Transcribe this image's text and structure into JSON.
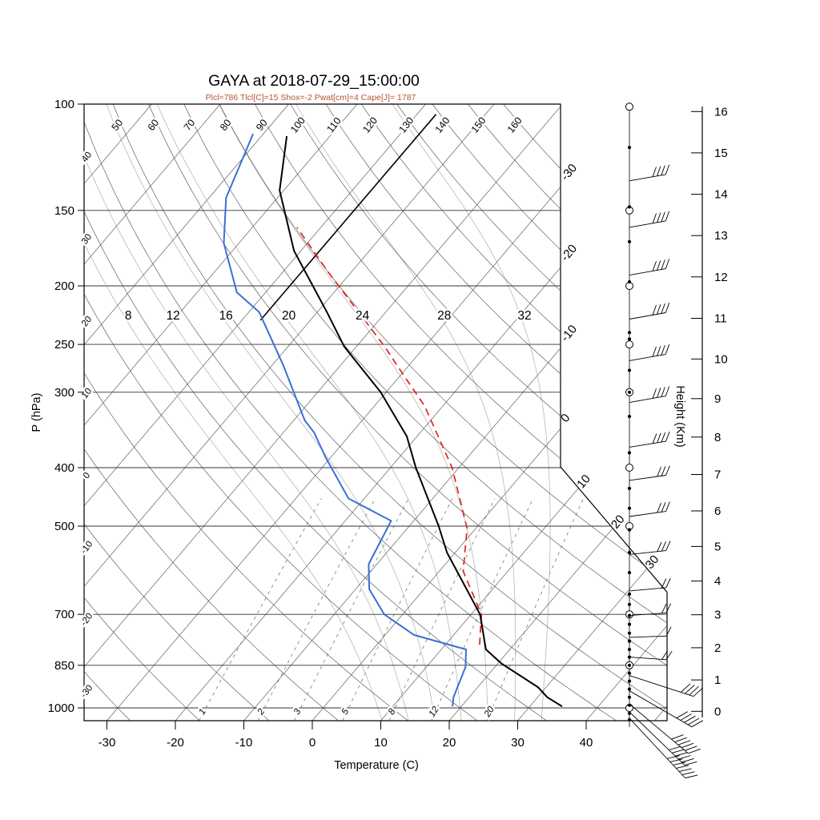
{
  "header": {
    "title": "GAYA at 2018-07-29_15:00:00",
    "subtitle": "Plcl=786 Tlcl[C]=15 Shox=-2 Pwat[cm]=4 Cape[J]= 1787",
    "indices": {
      "Plcl": 786,
      "Tlcl_C": 15,
      "Shox": -2,
      "Pwat_cm": 4,
      "Cape_J": 1787
    }
  },
  "colors": {
    "temperature_line": "#000000",
    "dewpoint_line": "#3c6fd6",
    "parcel_line": "#e02420",
    "subtitle_text": "#b5542e",
    "grid_line": "#555555",
    "pressure_line": "#333333",
    "moist_adiabat": "#b3b3b3",
    "mixing_ratio": "#777777"
  },
  "chart_data": {
    "type": "skewt_log_p",
    "xlabel": "Temperature (C)",
    "ylabel_left": "P (hPa)",
    "ylabel_right": "Height (Km)",
    "pressure_ticks_hpa": [
      100,
      150,
      200,
      250,
      300,
      400,
      500,
      700,
      850,
      1000
    ],
    "temperature_ticks_c": [
      -30,
      -20,
      -10,
      0,
      10,
      20,
      30,
      40
    ],
    "height_ticks_km": [
      0,
      1,
      2,
      3,
      4,
      5,
      6,
      7,
      8,
      9,
      10,
      11,
      12,
      13,
      14,
      15,
      16
    ],
    "isotherm_range_c": {
      "min": -120,
      "max": 50,
      "step": 10
    },
    "dry_adiabat_range_c": {
      "min": -30,
      "max": 160,
      "step": 10
    },
    "dry_adiabat_labels_top_c": [
      50,
      60,
      70,
      80,
      90,
      100,
      110,
      120,
      130,
      140,
      150,
      160
    ],
    "dry_adiabat_labels_left_c": [
      40,
      30,
      20,
      10,
      0,
      -10,
      -20,
      -30
    ],
    "isotherm_edge_labels_c": [
      -30,
      -20,
      -10,
      0,
      10,
      20,
      30
    ],
    "moist_adiabat_labels_c": [
      8,
      12,
      16,
      20,
      24,
      28,
      32
    ],
    "mixing_ratio_lines_gkg": [
      1,
      2,
      3,
      5,
      8,
      12,
      20
    ],
    "profiles": {
      "temperature_p_t": [
        [
          994,
          34.7
        ],
        [
          960,
          31.4
        ],
        [
          924,
          28.8
        ],
        [
          844,
          20.5
        ],
        [
          800,
          16.5
        ],
        [
          700,
          11.3
        ],
        [
          553,
          -1.2
        ],
        [
          500,
          -5.7
        ],
        [
          400,
          -16.3
        ],
        [
          355,
          -21.5
        ],
        [
          300,
          -30.8
        ],
        [
          252,
          -41.8
        ],
        [
          221,
          -48.6
        ],
        [
          175,
          -61.0
        ],
        [
          159,
          -65.0
        ],
        [
          139,
          -70.6
        ],
        [
          113,
          -76.3
        ]
      ],
      "dewpoint_p_t": [
        [
          994,
          18.7
        ],
        [
          960,
          17.7
        ],
        [
          855,
          15.7
        ],
        [
          800,
          13.6
        ],
        [
          757,
          4.2
        ],
        [
          700,
          -2.7
        ],
        [
          636,
          -8.0
        ],
        [
          578,
          -11.2
        ],
        [
          490,
          -13.3
        ],
        [
          450,
          -22.3
        ],
        [
          385,
          -30.7
        ],
        [
          350,
          -35.5
        ],
        [
          334,
          -38.4
        ],
        [
          270,
          -48.5
        ],
        [
          221,
          -58.5
        ],
        [
          205,
          -64.2
        ],
        [
          170,
          -72.2
        ],
        [
          143,
          -77.5
        ],
        [
          112,
          -81.5
        ]
      ],
      "parcel_p_t": [
        [
          786,
          15
        ],
        [
          700,
          11.5
        ],
        [
          594,
          3.5
        ],
        [
          504,
          -1.3
        ],
        [
          400,
          -11.0
        ],
        [
          316,
          -22.7
        ],
        [
          280,
          -29.8
        ],
        [
          252,
          -35.9
        ],
        [
          226,
          -42.6
        ],
        [
          190,
          -53.3
        ],
        [
          160,
          -63.5
        ]
      ],
      "upper_level_line_p_t": [
        [
          228,
          -57.3
        ],
        [
          104,
          -57.2
        ]
      ]
    },
    "wind_column": {
      "barbs": [
        {
          "p": 134,
          "ticks": 4,
          "angle_deg": -10
        },
        {
          "p": 160,
          "ticks": 4,
          "angle_deg": -10
        },
        {
          "p": 192,
          "ticks": 4,
          "angle_deg": -10
        },
        {
          "p": 227,
          "ticks": 4,
          "angle_deg": -10
        },
        {
          "p": 266,
          "ticks": 4,
          "angle_deg": -10
        },
        {
          "p": 312,
          "ticks": 4,
          "angle_deg": -10
        },
        {
          "p": 370,
          "ticks": 4,
          "angle_deg": -9
        },
        {
          "p": 420,
          "ticks": 3,
          "angle_deg": -8
        },
        {
          "p": 482,
          "ticks": 3,
          "angle_deg": -8
        },
        {
          "p": 557,
          "ticks": 3,
          "angle_deg": -6
        },
        {
          "p": 640,
          "ticks": 2,
          "angle_deg": -5
        },
        {
          "p": 703,
          "ticks": 2,
          "angle_deg": -4
        },
        {
          "p": 764,
          "ticks": 1,
          "angle_deg": -2
        },
        {
          "p": 824,
          "ticks": 2,
          "angle_deg": 4
        },
        {
          "p": 884,
          "ticks": 4,
          "angle_deg": 18
        },
        {
          "p": 937,
          "ticks": 5,
          "angle_deg": 30
        },
        {
          "p": 985,
          "ticks": 6,
          "angle_deg": 40
        },
        {
          "p": 1015,
          "ticks": 6,
          "angle_deg": 44
        },
        {
          "p": 1040,
          "ticks": 7,
          "angle_deg": 47
        }
      ],
      "marker_dots_p": [
        118,
        148,
        169,
        197,
        239,
        245,
        276,
        300,
        329,
        378,
        433,
        467,
        507,
        553,
        597,
        648,
        674,
        703,
        727,
        752,
        775,
        800,
        824,
        850,
        876,
        903,
        931,
        960,
        990,
        1021,
        1046
      ],
      "marker_circles_p": [
        101,
        150,
        200,
        250,
        300,
        400,
        500,
        700,
        850,
        1000
      ]
    }
  }
}
